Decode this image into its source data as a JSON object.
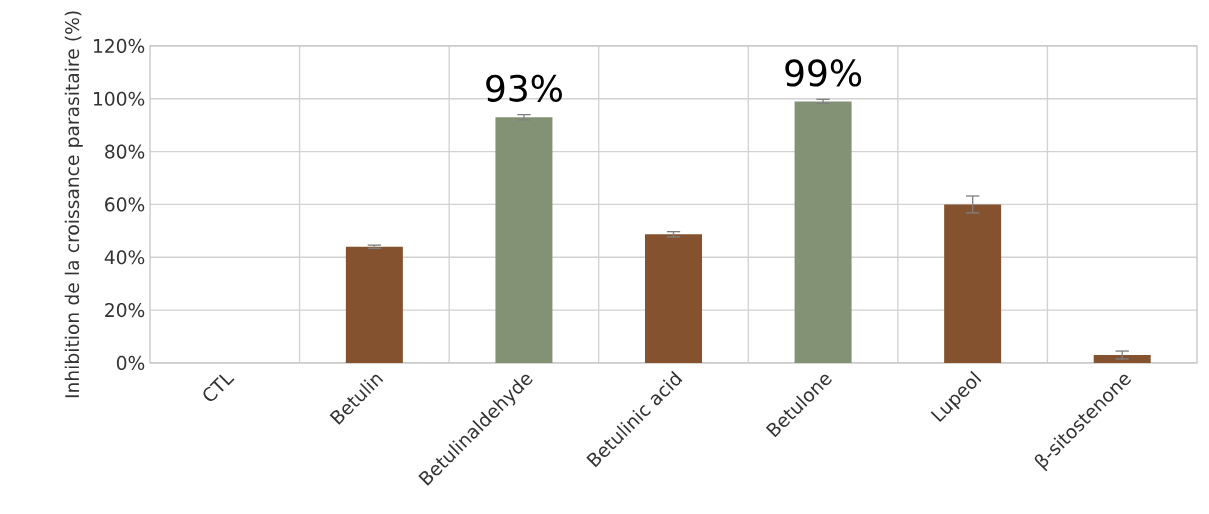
{
  "chart_data": {
    "type": "bar",
    "ylabel": "Inhibition de la croissance parasitaire (%)",
    "categories": [
      "CTL",
      "Betulin",
      "Betulinaldehyde",
      "Betulinic acid",
      "Betulone",
      "Lupeol",
      "β-sitostenone"
    ],
    "values": [
      0,
      44,
      93,
      48.7,
      99,
      60,
      3
    ],
    "errors": [
      null,
      0.6,
      1,
      1,
      0.8,
      3.2,
      1.5
    ],
    "colors": [
      "#84522f",
      "#84522f",
      "#839274",
      "#84522f",
      "#839274",
      "#84522f",
      "#84522f"
    ],
    "value_labels": [
      null,
      null,
      "93%",
      null,
      "99%",
      null,
      null
    ],
    "ylim": [
      0,
      120
    ],
    "yticks": [
      {
        "value": 0,
        "label": "0%"
      },
      {
        "value": 20,
        "label": "20%"
      },
      {
        "value": 40,
        "label": "40%"
      },
      {
        "value": 60,
        "label": "60%"
      },
      {
        "value": 80,
        "label": "80%"
      },
      {
        "value": 100,
        "label": "100%"
      },
      {
        "value": 120,
        "label": "120%"
      }
    ],
    "grid": true
  }
}
